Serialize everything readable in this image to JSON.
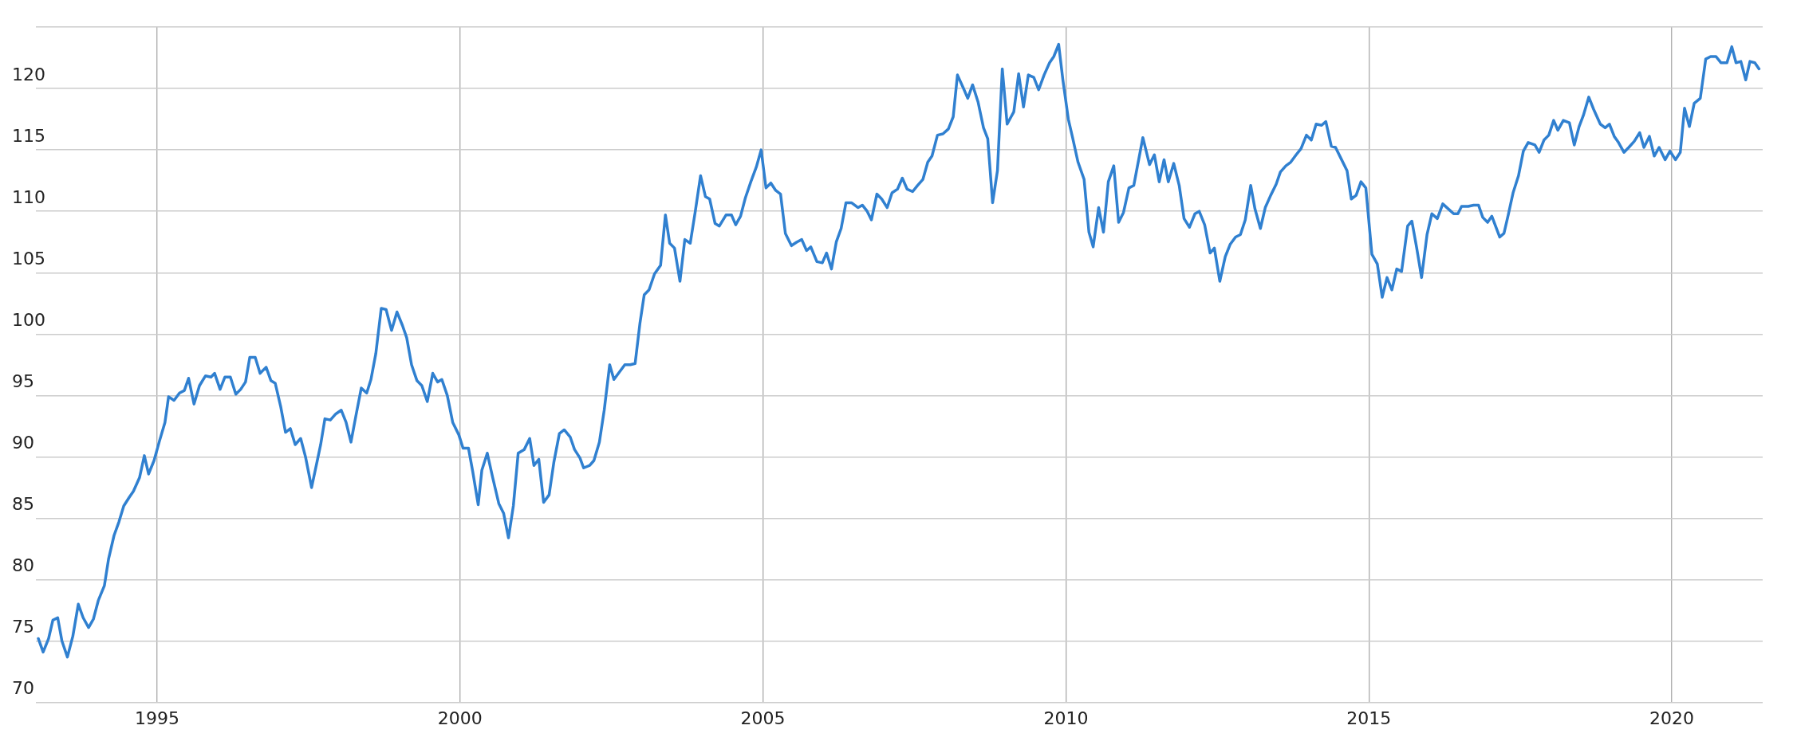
{
  "chart_data": {
    "type": "line",
    "color": "#3080d0",
    "marker": "none",
    "line_style": "solid",
    "grid": true,
    "xlim": [
      1993,
      2021.5
    ],
    "xticks": [
      1995,
      2000,
      2005,
      2010,
      2015,
      2020
    ],
    "ylim": [
      70,
      125
    ],
    "yticks": [
      70,
      75,
      80,
      85,
      90,
      95,
      100,
      105,
      110,
      115,
      120,
      {
        "value": 125,
        "label": null
      }
    ],
    "x": [
      1993.04,
      1993.12,
      1993.21,
      1993.28,
      1993.36,
      1993.43,
      1993.52,
      1993.61,
      1993.7,
      1993.78,
      1993.87,
      1993.95,
      1994.03,
      1994.13,
      1994.2,
      1994.29,
      1994.37,
      1994.45,
      1994.54,
      1994.61,
      1994.71,
      1994.79,
      1994.86,
      1994.95,
      1995.04,
      1995.13,
      1995.19,
      1995.28,
      1995.37,
      1995.45,
      1995.52,
      1995.61,
      1995.7,
      1995.8,
      1995.89,
      1995.95,
      1996.04,
      1996.12,
      1996.21,
      1996.3,
      1996.38,
      1996.46,
      1996.53,
      1996.62,
      1996.7,
      1996.8,
      1996.88,
      1996.95,
      1997.04,
      1997.12,
      1997.2,
      1997.28,
      1997.37,
      1997.45,
      1997.55,
      1997.64,
      1997.7,
      1997.77,
      1997.86,
      1997.95,
      1998.04,
      1998.12,
      1998.2,
      1998.28,
      1998.37,
      1998.46,
      1998.53,
      1998.61,
      1998.7,
      1998.78,
      1998.87,
      1998.96,
      1999.05,
      1999.12,
      1999.2,
      1999.29,
      1999.37,
      1999.46,
      1999.55,
      1999.63,
      1999.7,
      1999.79,
      1999.88,
      1999.98,
      2000.05,
      2000.14,
      2000.21,
      2000.3,
      2000.36,
      2000.45,
      2000.54,
      2000.64,
      2000.72,
      2000.8,
      2000.88,
      2000.96,
      2001.06,
      2001.15,
      2001.22,
      2001.3,
      2001.38,
      2001.47,
      2001.55,
      2001.64,
      2001.72,
      2001.82,
      2001.89,
      2001.98,
      2002.04,
      2002.14,
      2002.21,
      2002.3,
      2002.38,
      2002.47,
      2002.54,
      2002.63,
      2002.72,
      2002.81,
      2002.89,
      2002.97,
      2003.04,
      2003.12,
      2003.21,
      2003.31,
      2003.39,
      2003.46,
      2003.54,
      2003.63,
      2003.71,
      2003.8,
      2003.88,
      2003.97,
      2004.05,
      2004.12,
      2004.21,
      2004.28,
      2004.39,
      2004.48,
      2004.55,
      2004.63,
      2004.71,
      2004.8,
      2004.89,
      2004.97,
      2005.05,
      2005.13,
      2005.21,
      2005.29,
      2005.37,
      2005.47,
      2005.56,
      2005.64,
      2005.72,
      2005.79,
      2005.89,
      2005.98,
      2006.05,
      2006.13,
      2006.21,
      2006.29,
      2006.37,
      2006.46,
      2006.57,
      2006.64,
      2006.72,
      2006.79,
      2006.88,
      2006.96,
      2007.05,
      2007.13,
      2007.22,
      2007.3,
      2007.38,
      2007.47,
      2007.55,
      2007.64,
      2007.72,
      2007.79,
      2007.88,
      2007.97,
      2008.06,
      2008.14,
      2008.21,
      2008.31,
      2008.38,
      2008.46,
      2008.55,
      2008.64,
      2008.71,
      2008.79,
      2008.87,
      2008.95,
      2009.03,
      2009.14,
      2009.22,
      2009.3,
      2009.38,
      2009.47,
      2009.55,
      2009.64,
      2009.73,
      2009.8,
      2009.88,
      2009.95,
      2010.04,
      2010.11,
      2010.2,
      2010.3,
      2010.38,
      2010.45,
      2010.54,
      2010.62,
      2010.7,
      2010.79,
      2010.87,
      2010.95,
      2011.04,
      2011.12,
      2011.27,
      2011.38,
      2011.46,
      2011.54,
      2011.62,
      2011.69,
      2011.78,
      2011.87,
      2011.95,
      2012.04,
      2012.13,
      2012.2,
      2012.29,
      2012.38,
      2012.45,
      2012.54,
      2012.63,
      2012.71,
      2012.8,
      2012.88,
      2012.96,
      2013.05,
      2013.12,
      2013.21,
      2013.29,
      2013.38,
      2013.47,
      2013.54,
      2013.63,
      2013.71,
      2013.8,
      2013.88,
      2013.97,
      2014.05,
      2014.13,
      2014.22,
      2014.29,
      2014.38,
      2014.45,
      2014.54,
      2014.64,
      2014.71,
      2014.79,
      2014.87,
      2014.95,
      2015.05,
      2015.14,
      2015.22,
      2015.3,
      2015.38,
      2015.46,
      2015.54,
      2015.64,
      2015.71,
      2015.79,
      2015.87,
      2015.96,
      2016.04,
      2016.13,
      2016.22,
      2016.31,
      2016.4,
      2016.47,
      2016.53,
      2016.64,
      2016.73,
      2016.81,
      2016.88,
      2016.96,
      2017.03,
      2017.16,
      2017.23,
      2017.3,
      2017.38,
      2017.47,
      2017.55,
      2017.63,
      2017.74,
      2017.81,
      2017.89,
      2017.97,
      2018.05,
      2018.12,
      2018.21,
      2018.31,
      2018.39,
      2018.47,
      2018.54,
      2018.63,
      2018.71,
      2018.82,
      2018.9,
      2018.97,
      2019.05,
      2019.12,
      2019.21,
      2019.29,
      2019.38,
      2019.47,
      2019.54,
      2019.63,
      2019.71,
      2019.79,
      2019.89,
      2019.97,
      2020.06,
      2020.14,
      2020.21,
      2020.29,
      2020.37,
      2020.47,
      2020.56,
      2020.64,
      2020.73,
      2020.81,
      2020.91,
      2020.99,
      2021.06,
      2021.14,
      2021.22,
      2021.29,
      2021.37,
      2021.44
    ],
    "values": [
      75.2,
      74.1,
      75.2,
      76.7,
      76.9,
      75.0,
      73.7,
      75.4,
      78.0,
      76.9,
      76.1,
      76.8,
      78.3,
      79.5,
      81.7,
      83.6,
      84.7,
      86.0,
      86.7,
      87.2,
      88.3,
      90.1,
      88.6,
      89.7,
      91.3,
      92.8,
      94.9,
      94.6,
      95.2,
      95.4,
      96.4,
      94.3,
      95.8,
      96.6,
      96.5,
      96.8,
      95.5,
      96.5,
      96.5,
      95.1,
      95.5,
      96.1,
      98.1,
      98.1,
      96.8,
      97.3,
      96.2,
      96.0,
      94.1,
      92.0,
      92.3,
      91.0,
      91.5,
      90.0,
      87.5,
      89.6,
      91.0,
      93.1,
      93.0,
      93.5,
      93.8,
      92.8,
      91.2,
      93.3,
      95.6,
      95.2,
      96.3,
      98.4,
      102.1,
      102.0,
      100.3,
      101.8,
      100.7,
      99.7,
      97.5,
      96.2,
      95.8,
      94.5,
      96.8,
      96.1,
      96.3,
      95.0,
      92.8,
      91.8,
      90.7,
      90.7,
      88.8,
      86.1,
      88.9,
      90.3,
      88.3,
      86.2,
      85.4,
      83.4,
      86.0,
      90.3,
      90.6,
      91.5,
      89.3,
      89.8,
      86.3,
      86.9,
      89.6,
      91.9,
      92.2,
      91.6,
      90.6,
      89.9,
      89.1,
      89.3,
      89.7,
      91.2,
      93.8,
      97.5,
      96.3,
      96.9,
      97.5,
      97.5,
      97.6,
      100.9,
      103.2,
      103.6,
      104.9,
      105.6,
      109.7,
      107.4,
      107.0,
      104.3,
      107.7,
      107.4,
      109.9,
      112.9,
      111.2,
      111.0,
      109.0,
      108.8,
      109.7,
      109.7,
      108.9,
      109.6,
      111.1,
      112.4,
      113.6,
      115.0,
      111.9,
      112.3,
      111.7,
      111.4,
      108.2,
      107.2,
      107.5,
      107.7,
      106.8,
      107.1,
      105.9,
      105.8,
      106.6,
      105.3,
      107.5,
      108.6,
      110.7,
      110.7,
      110.3,
      110.5,
      110.0,
      109.3,
      111.4,
      111.0,
      110.3,
      111.5,
      111.8,
      112.7,
      111.8,
      111.6,
      112.1,
      112.6,
      114.0,
      114.5,
      116.2,
      116.3,
      116.7,
      117.7,
      121.1,
      120.0,
      119.2,
      120.3,
      118.9,
      116.8,
      115.9,
      110.7,
      113.3,
      121.6,
      117.1,
      118.1,
      121.2,
      118.5,
      121.1,
      120.9,
      119.9,
      121.1,
      122.1,
      122.6,
      123.6,
      120.7,
      117.5,
      116.0,
      114.0,
      112.6,
      108.3,
      107.1,
      110.3,
      108.3,
      112.4,
      113.7,
      109.1,
      109.9,
      111.9,
      112.1,
      116.0,
      113.8,
      114.6,
      112.4,
      114.2,
      112.4,
      113.9,
      112.1,
      109.4,
      108.7,
      109.8,
      110.0,
      108.9,
      106.6,
      107.0,
      104.3,
      106.3,
      107.3,
      107.9,
      108.1,
      109.3,
      112.1,
      110.2,
      108.6,
      110.3,
      111.3,
      112.2,
      113.2,
      113.7,
      114.0,
      114.6,
      115.1,
      116.2,
      115.8,
      117.1,
      117.0,
      117.3,
      115.3,
      115.2,
      114.3,
      113.3,
      111.0,
      111.3,
      112.4,
      111.9,
      106.5,
      105.7,
      103.0,
      104.6,
      103.6,
      105.3,
      105.1,
      108.8,
      109.2,
      107.0,
      104.6,
      108.1,
      109.8,
      109.4,
      110.6,
      110.2,
      109.8,
      109.8,
      110.4,
      110.4,
      110.5,
      110.5,
      109.5,
      109.1,
      109.6,
      107.9,
      108.2,
      109.7,
      111.5,
      112.9,
      114.9,
      115.6,
      115.4,
      114.8,
      115.8,
      116.2,
      117.4,
      116.6,
      117.4,
      117.2,
      115.4,
      116.9,
      117.8,
      119.3,
      118.3,
      117.1,
      116.8,
      117.1,
      116.1,
      115.6,
      114.8,
      115.2,
      115.7,
      116.4,
      115.2,
      116.1,
      114.5,
      115.2,
      114.2,
      114.9,
      114.2,
      114.8,
      118.4,
      116.9,
      118.8,
      119.2,
      122.4,
      122.6,
      122.6,
      122.1,
      122.1,
      123.4,
      122.1,
      122.2,
      120.7,
      122.2,
      122.1,
      121.6
    ]
  }
}
